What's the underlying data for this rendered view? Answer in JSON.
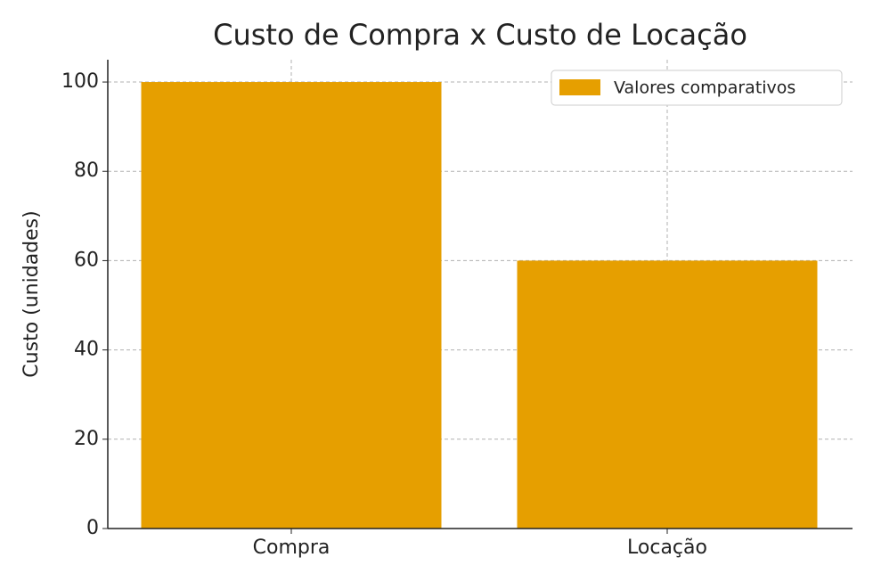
{
  "chart_data": {
    "type": "bar",
    "title": "Custo de Compra x Custo de Locação",
    "y_label": "Custo (unidades)",
    "categories": [
      "Compra",
      "Locação"
    ],
    "series": [
      {
        "name": "Valores comparativos",
        "color": "#e69f00",
        "values": [
          100,
          60
        ]
      }
    ],
    "ylim": [
      0,
      105
    ],
    "yticks": [
      0,
      20,
      40,
      60,
      80,
      100
    ],
    "grid": true,
    "legend": "upper-right"
  }
}
